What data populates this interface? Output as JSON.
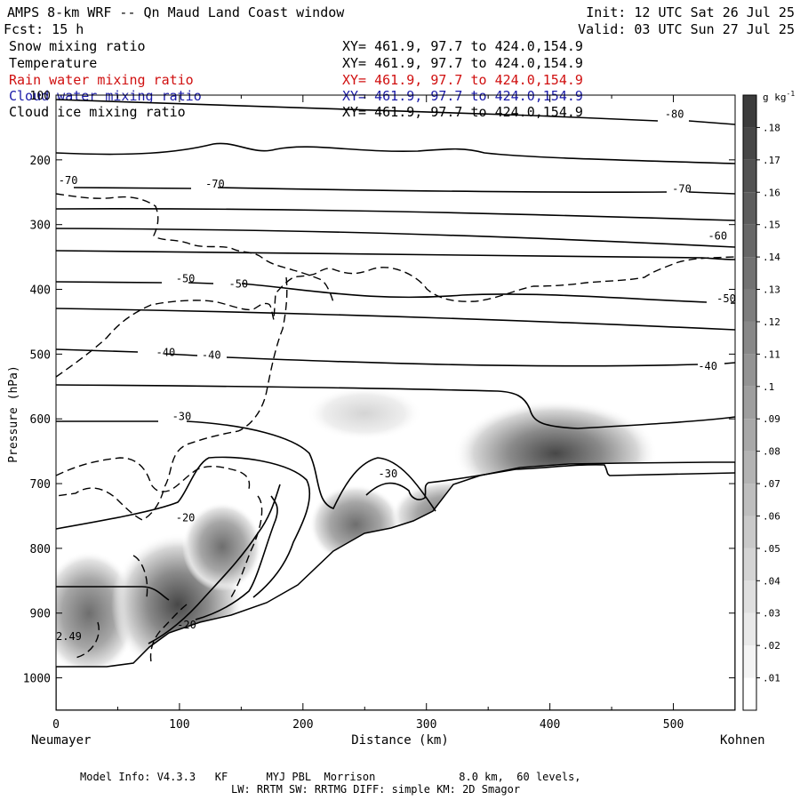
{
  "header": {
    "title": "AMPS 8-km WRF -- Qn Maud Land Coast window",
    "init": "Init: 12 UTC Sat 26 Jul 25",
    "fcst": "Fcst:   15 h",
    "valid": "Valid: 03 UTC Sun 27 Jul 25"
  },
  "variables": [
    {
      "name": "Snow mixing ratio",
      "xy": "XY= 461.9, 97.7 to 424.0,154.9",
      "color": "#000000"
    },
    {
      "name": "Temperature",
      "xy": "XY= 461.9, 97.7 to 424.0,154.9",
      "color": "#000000"
    },
    {
      "name": "Rain water mixing ratio",
      "xy": "XY= 461.9, 97.7 to 424.0,154.9",
      "color": "#d01010"
    },
    {
      "name": "Cloud water mixing ratio",
      "xy": "XY= 461.9, 97.7 to 424.0,154.9",
      "color": "#1a1aa8"
    },
    {
      "name": "Cloud ice mixing ratio",
      "xy": "XY= 461.9, 97.7 to 424.0,154.9",
      "color": "#000000"
    }
  ],
  "chart_data": {
    "type": "cross-section",
    "xlabel": "Distance (km)",
    "ylabel": "Pressure (hPa)",
    "xlim": [
      0,
      550
    ],
    "ylim": [
      1050,
      100
    ],
    "x_ticks": [
      0,
      100,
      200,
      300,
      400,
      500
    ],
    "y_ticks": [
      100,
      200,
      300,
      400,
      500,
      600,
      700,
      800,
      900,
      1000
    ],
    "left_end_label": "Neumayer",
    "right_end_label": "Kohnen",
    "terrain_pressure": [
      [
        0,
        980
      ],
      [
        60,
        980
      ],
      [
        95,
        970
      ],
      [
        120,
        940
      ],
      [
        140,
        920
      ],
      [
        175,
        890
      ],
      [
        200,
        870
      ],
      [
        235,
        850
      ],
      [
        260,
        830
      ],
      [
        290,
        805
      ],
      [
        310,
        800
      ],
      [
        330,
        795
      ],
      [
        345,
        790
      ],
      [
        355,
        770
      ],
      [
        370,
        735
      ],
      [
        400,
        710
      ],
      [
        440,
        695
      ],
      [
        480,
        692
      ],
      [
        550,
        690
      ]
    ],
    "temperature_contour_labels": [
      {
        "label": "-80",
        "x": 493,
        "p": 135
      },
      {
        "label": "-70",
        "x": 2,
        "p": 237
      },
      {
        "label": "-70",
        "x": 121,
        "p": 243
      },
      {
        "label": "-70",
        "x": 499,
        "p": 250
      },
      {
        "label": "-60",
        "x": 528,
        "p": 323
      },
      {
        "label": "-50",
        "x": 97,
        "p": 389
      },
      {
        "label": "-50",
        "x": 140,
        "p": 397
      },
      {
        "label": "-50",
        "x": 535,
        "p": 420
      },
      {
        "label": "-40",
        "x": 81,
        "p": 503
      },
      {
        "label": "-40",
        "x": 118,
        "p": 507
      },
      {
        "label": "-40",
        "x": 520,
        "p": 524
      },
      {
        "label": "-30",
        "x": 94,
        "p": 602
      },
      {
        "label": "-30",
        "x": 261,
        "p": 690
      },
      {
        "label": "-20",
        "x": 97,
        "p": 758
      },
      {
        "label": "-20",
        "x": 98,
        "p": 924
      }
    ],
    "shading_label": "2.49",
    "colorbar": {
      "unit": "g kg",
      "unit_exponent": "-1",
      "levels": [
        ".01",
        ".02",
        ".03",
        ".04",
        ".05",
        ".06",
        ".07",
        ".08",
        ".09",
        ".1",
        ".11",
        ".12",
        ".13",
        ".14",
        ".15",
        ".16",
        ".17",
        ".18"
      ]
    }
  },
  "footer": {
    "line1": "Model Info: V4.3.3   KF      MYJ PBL  Morrison             8.0 km,  60 levels,",
    "line2": "LW: RRTM SW: RRTMG   DIFF: simple KM: 2D Smagor"
  }
}
